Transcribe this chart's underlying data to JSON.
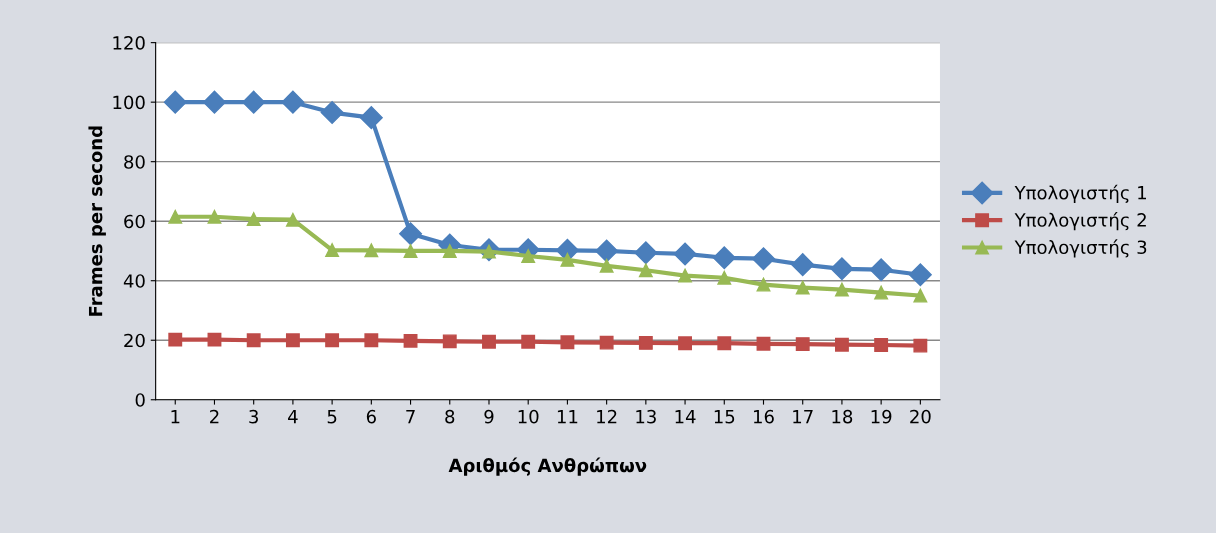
{
  "chart_data": {
    "type": "line",
    "xlabel": "Αριθμός Ανθρώπων",
    "ylabel": "Frames per second",
    "categories": [
      "1",
      "2",
      "3",
      "4",
      "5",
      "6",
      "7",
      "8",
      "9",
      "10",
      "11",
      "12",
      "13",
      "14",
      "15",
      "16",
      "17",
      "18",
      "19",
      "20"
    ],
    "series": [
      {
        "name": "Υπολογιστής 1",
        "color": "#4a7ebb",
        "marker": "diamond",
        "values": [
          100,
          100,
          100,
          100,
          96.5,
          94.8,
          55.8,
          52,
          50.4,
          50.4,
          50.2,
          50,
          49.4,
          49,
          47.7,
          47.4,
          45.4,
          44,
          43.7,
          42
        ]
      },
      {
        "name": "Υπολογιστής 2",
        "color": "#be4b48",
        "marker": "square",
        "values": [
          20.2,
          20.2,
          20,
          20,
          20,
          20,
          19.8,
          19.6,
          19.5,
          19.5,
          19.3,
          19.2,
          19.1,
          19,
          19,
          18.8,
          18.7,
          18.5,
          18.4,
          18.2
        ]
      },
      {
        "name": "Υπολογιστής 3",
        "color": "#98b954",
        "marker": "triangle",
        "values": [
          61.5,
          61.5,
          60.7,
          60.5,
          50.3,
          50.2,
          50,
          50,
          49.8,
          48.3,
          47,
          45,
          43.5,
          41.7,
          41,
          38.7,
          37.7,
          37,
          36,
          35
        ]
      }
    ],
    "ylim": [
      0,
      120
    ],
    "yticks": [
      0,
      20,
      40,
      60,
      80,
      100,
      120
    ],
    "grid": "y",
    "legend": "right",
    "line_style": "solid"
  }
}
